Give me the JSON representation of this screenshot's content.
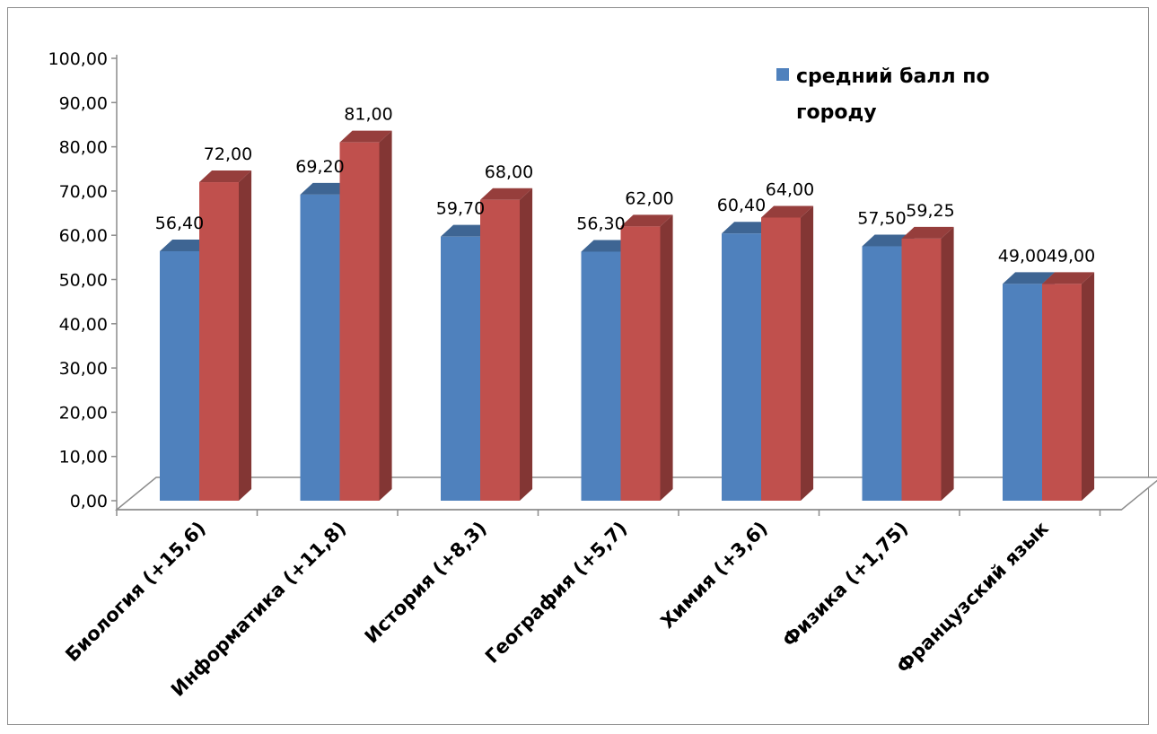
{
  "chart_data": {
    "type": "bar",
    "categories": [
      "Биология (+15,6)",
      "Информатика (+11,8)",
      "История (+8,3)",
      "География (+5,7)",
      "Химия (+3,6)",
      "Физика (+1,75)",
      "Французский язык"
    ],
    "series": [
      {
        "name": "средний балл по городу",
        "color": "#4f81bd",
        "values": [
          56.4,
          69.2,
          59.7,
          56.3,
          60.4,
          57.5,
          49.0
        ],
        "labels": [
          "56,40",
          "69,20",
          "59,70",
          "56,30",
          "60,40",
          "57,50",
          "49,00"
        ]
      },
      {
        "color": "#c0504d",
        "values": [
          72.0,
          81.0,
          68.0,
          62.0,
          64.0,
          59.25,
          49.0
        ],
        "labels": [
          "72,00",
          "81,00",
          "68,00",
          "62,00",
          "64,00",
          "59,25",
          "49,00"
        ]
      }
    ],
    "yticks": [
      "0,00",
      "10,00",
      "20,00",
      "30,00",
      "40,00",
      "50,00",
      "60,00",
      "70,00",
      "80,00",
      "90,00",
      "100,00"
    ],
    "ylim": [
      0,
      100
    ],
    "grid": false,
    "legend_position": "top-right",
    "legend_lines": [
      "средний балл по",
      "городу"
    ]
  }
}
